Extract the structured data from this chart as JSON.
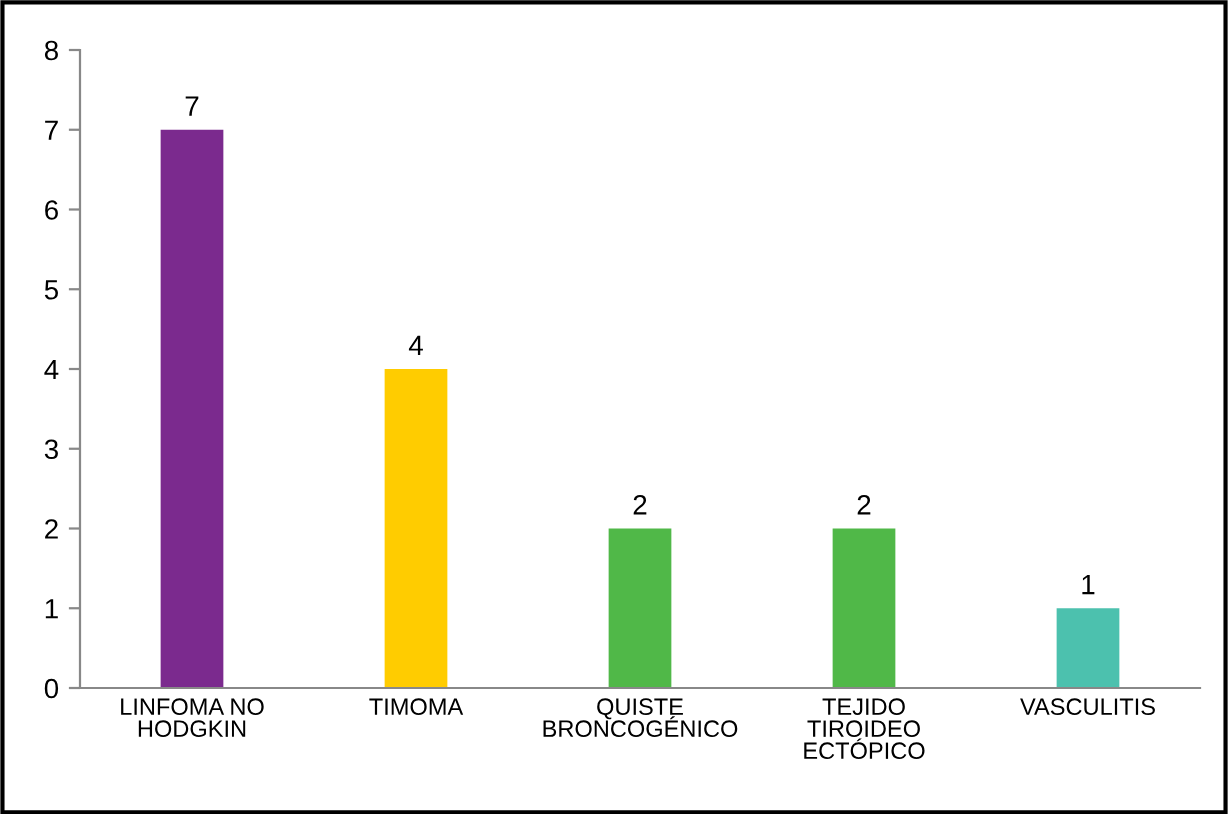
{
  "chart_data": {
    "type": "bar",
    "categories": [
      "LINFOMA NO\nHODGKIN",
      "TIMOMA",
      "QUISTE\nBRONCOGÉNICO",
      "TEJIDO\nTIROIDEO\nECTÓPICO",
      "VASCULITIS"
    ],
    "values": [
      7,
      4,
      2,
      2,
      1
    ],
    "colors": [
      "#7b2a8e",
      "#ffcc00",
      "#50b848",
      "#50b848",
      "#4cc1ae"
    ],
    "ylim": [
      0,
      8
    ],
    "yticks": [
      0,
      1,
      2,
      3,
      4,
      5,
      6,
      7,
      8
    ],
    "data_labels": true,
    "grid": false,
    "legend": false
  }
}
